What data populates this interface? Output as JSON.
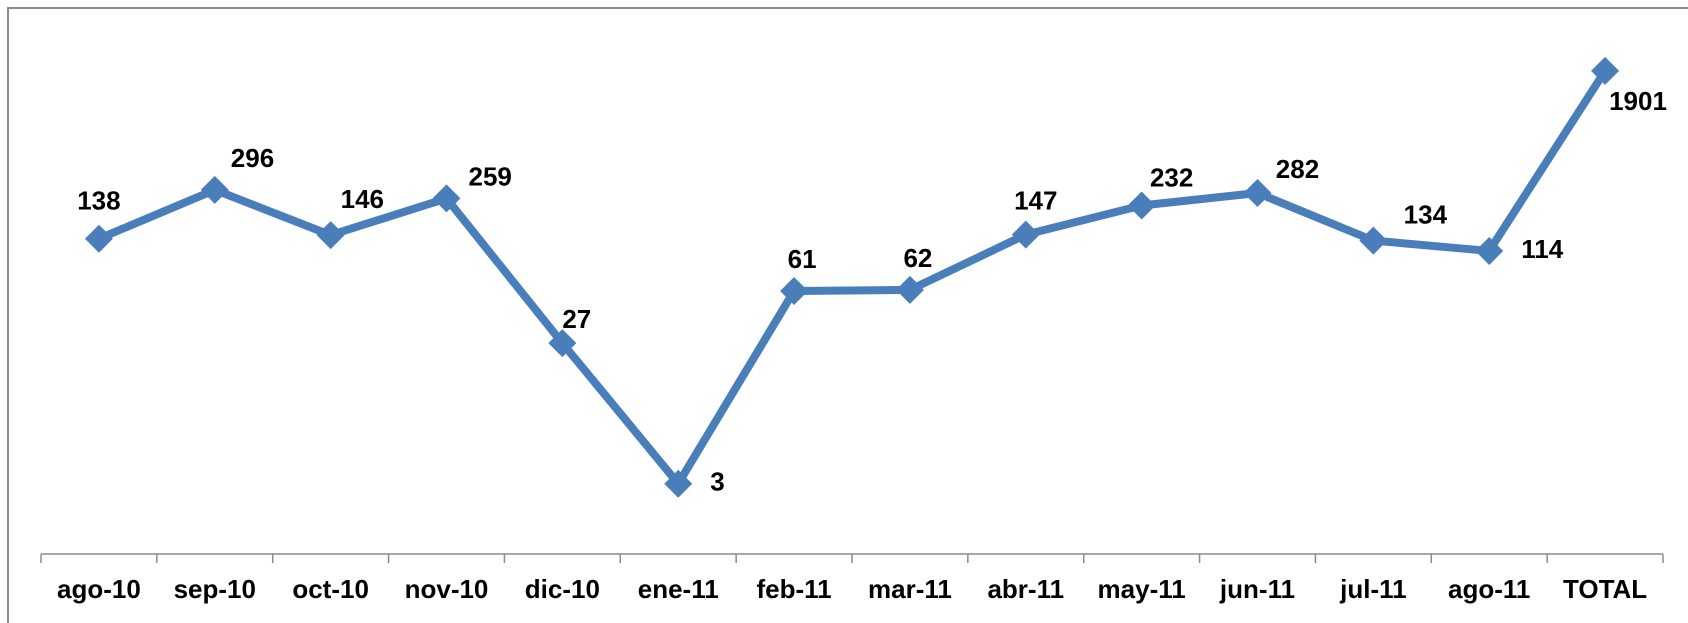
{
  "chart_data": {
    "type": "line",
    "categories": [
      "ago-10",
      "sep-10",
      "oct-10",
      "nov-10",
      "dic-10",
      "ene-11",
      "feb-11",
      "mar-11",
      "abr-11",
      "may-11",
      "jun-11",
      "jul-11",
      "ago-11",
      "TOTAL"
    ],
    "series": [
      {
        "color": "#4a7ebb",
        "values": [
          138,
          296,
          146,
          259,
          27,
          3,
          61,
          62,
          147,
          232,
          282,
          134,
          114,
          1901
        ]
      }
    ],
    "log": true,
    "ylim": [
      1,
      5000
    ]
  }
}
